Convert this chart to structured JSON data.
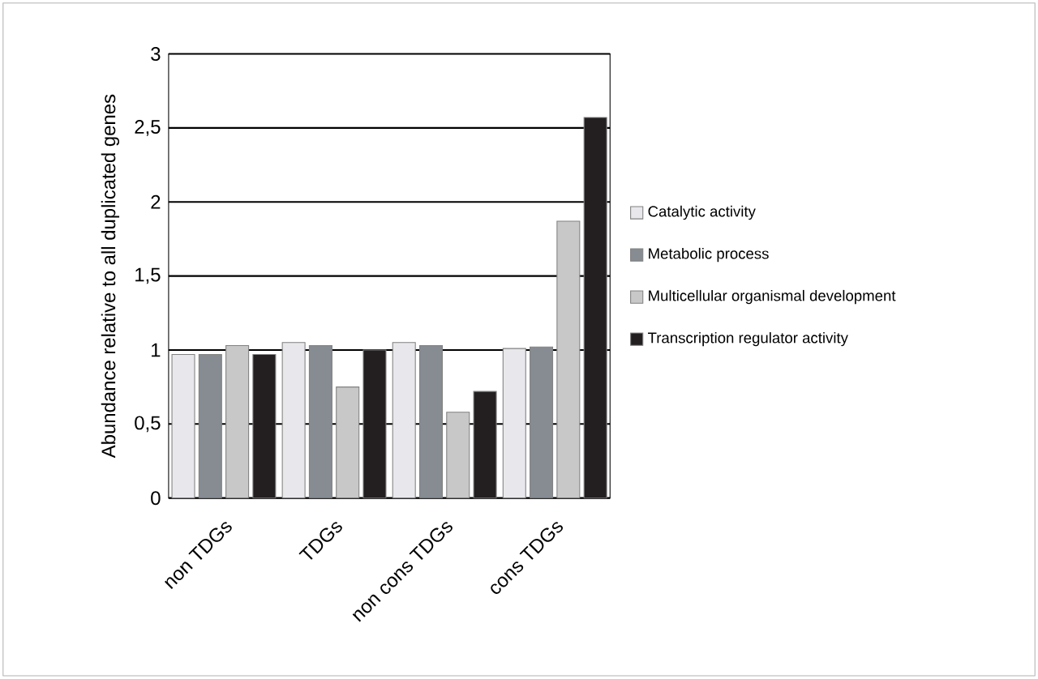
{
  "chart_data": {
    "type": "bar",
    "ylabel": "Abundance relative to all duplicated genes",
    "categories": [
      "non TDGs",
      "TDGs",
      "non cons TDGs",
      "cons TDGs"
    ],
    "series": [
      {
        "name": "Catalytic activity",
        "color": "#e8e8ec",
        "values": [
          0.97,
          1.05,
          1.05,
          1.01
        ]
      },
      {
        "name": "Metabolic process",
        "color": "#868c92",
        "values": [
          0.97,
          1.03,
          1.03,
          1.02
        ]
      },
      {
        "name": "Multicellular organismal development",
        "color": "#c8c8c8",
        "values": [
          1.03,
          0.75,
          0.58,
          1.87
        ]
      },
      {
        "name": "Transcription regulator activity",
        "color": "#231f20",
        "values": [
          0.97,
          1.0,
          0.72,
          2.57
        ]
      }
    ],
    "ylim": [
      0,
      3
    ],
    "yticks": [
      0,
      {
        "value": 0.5,
        "label": "0,5"
      },
      1,
      {
        "value": 1.5,
        "label": "1,5"
      },
      2,
      {
        "value": 2.5,
        "label": "2,5"
      },
      3
    ],
    "grid": "y",
    "legend": "right"
  }
}
